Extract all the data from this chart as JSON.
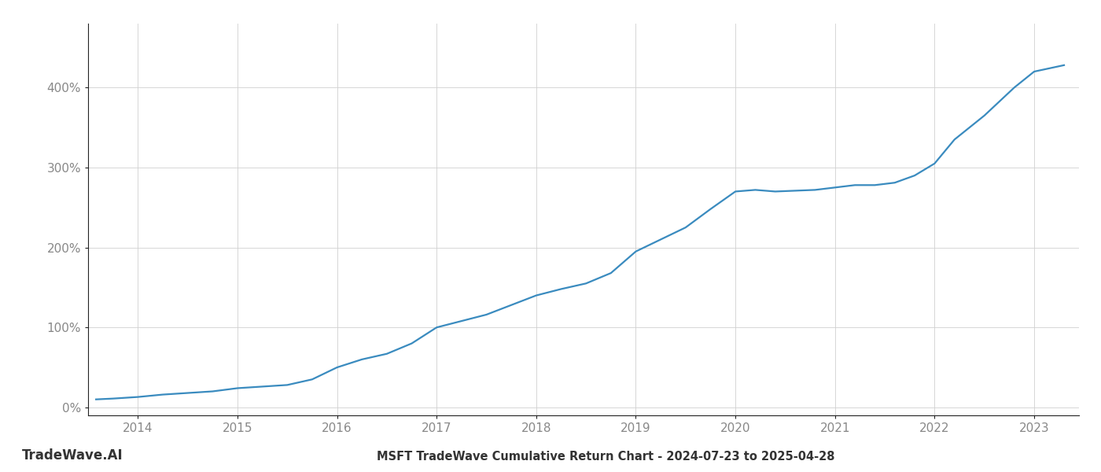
{
  "title": "MSFT TradeWave Cumulative Return Chart - 2024-07-23 to 2025-04-28",
  "watermark": "TradeWave.AI",
  "line_color": "#3a8bbf",
  "background_color": "#ffffff",
  "grid_color": "#d0d0d0",
  "x_years": [
    2014,
    2015,
    2016,
    2017,
    2018,
    2019,
    2020,
    2021,
    2022,
    2023
  ],
  "x_data": [
    2013.58,
    2013.75,
    2014.0,
    2014.25,
    2014.5,
    2014.75,
    2015.0,
    2015.25,
    2015.5,
    2015.75,
    2016.0,
    2016.25,
    2016.5,
    2016.75,
    2017.0,
    2017.25,
    2017.5,
    2017.75,
    2018.0,
    2018.25,
    2018.5,
    2018.75,
    2019.0,
    2019.25,
    2019.5,
    2019.75,
    2020.0,
    2020.2,
    2020.4,
    2020.6,
    2020.8,
    2021.0,
    2021.2,
    2021.4,
    2021.6,
    2021.8,
    2022.0,
    2022.2,
    2022.5,
    2022.8,
    2023.0,
    2023.3
  ],
  "y_data": [
    10,
    11,
    13,
    16,
    18,
    20,
    24,
    26,
    28,
    35,
    50,
    60,
    67,
    80,
    100,
    108,
    116,
    128,
    140,
    148,
    155,
    168,
    195,
    210,
    225,
    248,
    270,
    272,
    270,
    271,
    272,
    275,
    278,
    278,
    281,
    290,
    305,
    335,
    365,
    400,
    420,
    428
  ],
  "ylim": [
    -10,
    480
  ],
  "xlim": [
    2013.5,
    2023.45
  ],
  "yticks": [
    0,
    100,
    200,
    300,
    400
  ],
  "ytick_labels": [
    "0%",
    "100%",
    "200%",
    "300%",
    "400%"
  ],
  "title_fontsize": 10.5,
  "tick_color": "#888888",
  "tick_fontsize": 11,
  "watermark_fontsize": 12,
  "line_width": 1.6,
  "spine_color": "#222222",
  "bottom_text_color": "#333333"
}
